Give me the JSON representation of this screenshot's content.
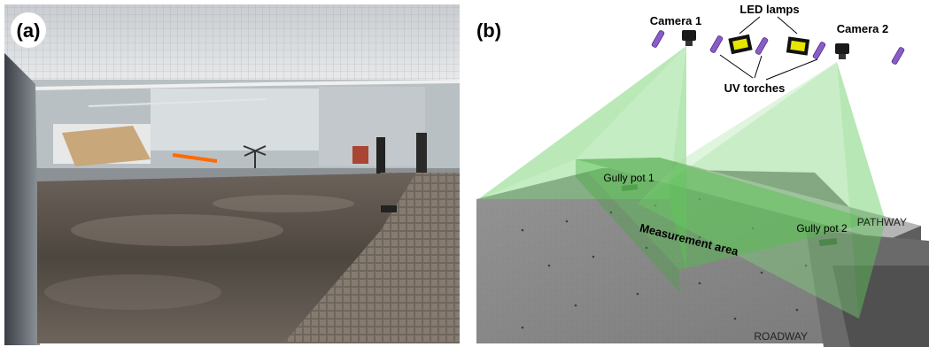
{
  "panel_a": {
    "label": "(a)"
  },
  "panel_b": {
    "label": "(b)",
    "camera_1": "Camera 1",
    "camera_2": "Camera 2",
    "led_lamps": "LED lamps",
    "uv_torches": "UV torches",
    "gully_pot_1": "Gully pot 1",
    "gully_pot_2": "Gully pot 2",
    "measurement_area": "Measurement area",
    "pathway": "PATHWAY",
    "roadway": "ROADWAY"
  },
  "colors": {
    "frustum_green": "#7fd67a",
    "platform_gray": "#7b7b7b",
    "torch_purple": "#8a5cc9",
    "lamp_yellow": "#e6e600"
  }
}
